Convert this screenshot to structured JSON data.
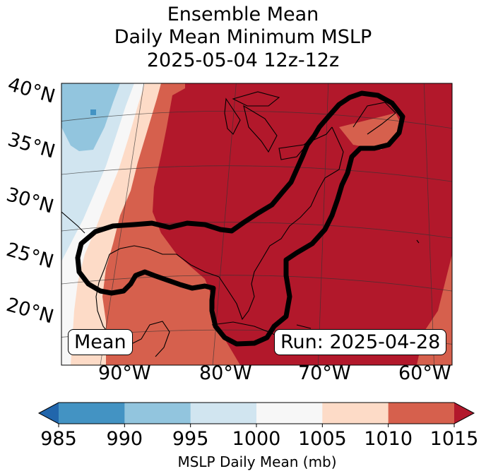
{
  "title": {
    "line1": "Ensemble Mean",
    "line2": "Daily Mean Minimum MSLP",
    "line3": "2025-05-04 12z-12z"
  },
  "map": {
    "lat_labels": [
      "40°N",
      "35°N",
      "30°N",
      "25°N",
      "20°N"
    ],
    "lon_labels": [
      "90°W",
      "80°W",
      "70°W",
      "60°W"
    ],
    "mean_label": "Mean",
    "run_label": "Run: 2025-04-28"
  },
  "colorbar": {
    "ticks": [
      "985",
      "990",
      "995",
      "1000",
      "1005",
      "1010",
      "1015"
    ],
    "colors": [
      "#2166ac",
      "#4393c3",
      "#92c5de",
      "#d1e5f0",
      "#f7f7f7",
      "#fddbc7",
      "#d6604d",
      "#b2182b"
    ],
    "label": "MSLP Daily Mean (mb)"
  }
}
